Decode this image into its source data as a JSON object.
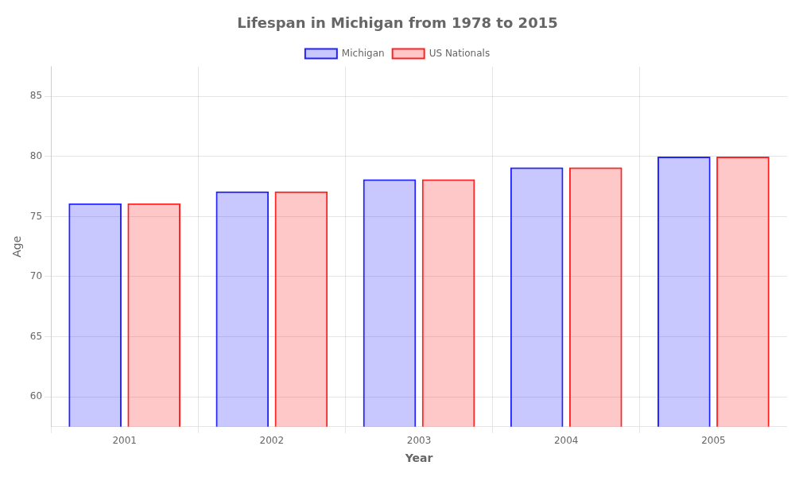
{
  "chart_data": {
    "type": "bar",
    "title": "Lifespan in Michigan from 1978 to 2015",
    "xlabel": "Year",
    "ylabel": "Age",
    "categories": [
      "2001",
      "2002",
      "2003",
      "2004",
      "2005"
    ],
    "series": [
      {
        "name": "Michigan",
        "color": "#2222ff",
        "values": [
          76.1,
          77.1,
          78.1,
          79.1,
          80.0
        ]
      },
      {
        "name": "US Nationals",
        "color": "#ff2222",
        "values": [
          76.1,
          77.1,
          78.1,
          79.1,
          80.0
        ]
      }
    ],
    "ylim": [
      57.5,
      87.5
    ],
    "yticks": [
      60,
      65,
      70,
      75,
      80,
      85
    ],
    "grid": true,
    "legend": "top"
  }
}
